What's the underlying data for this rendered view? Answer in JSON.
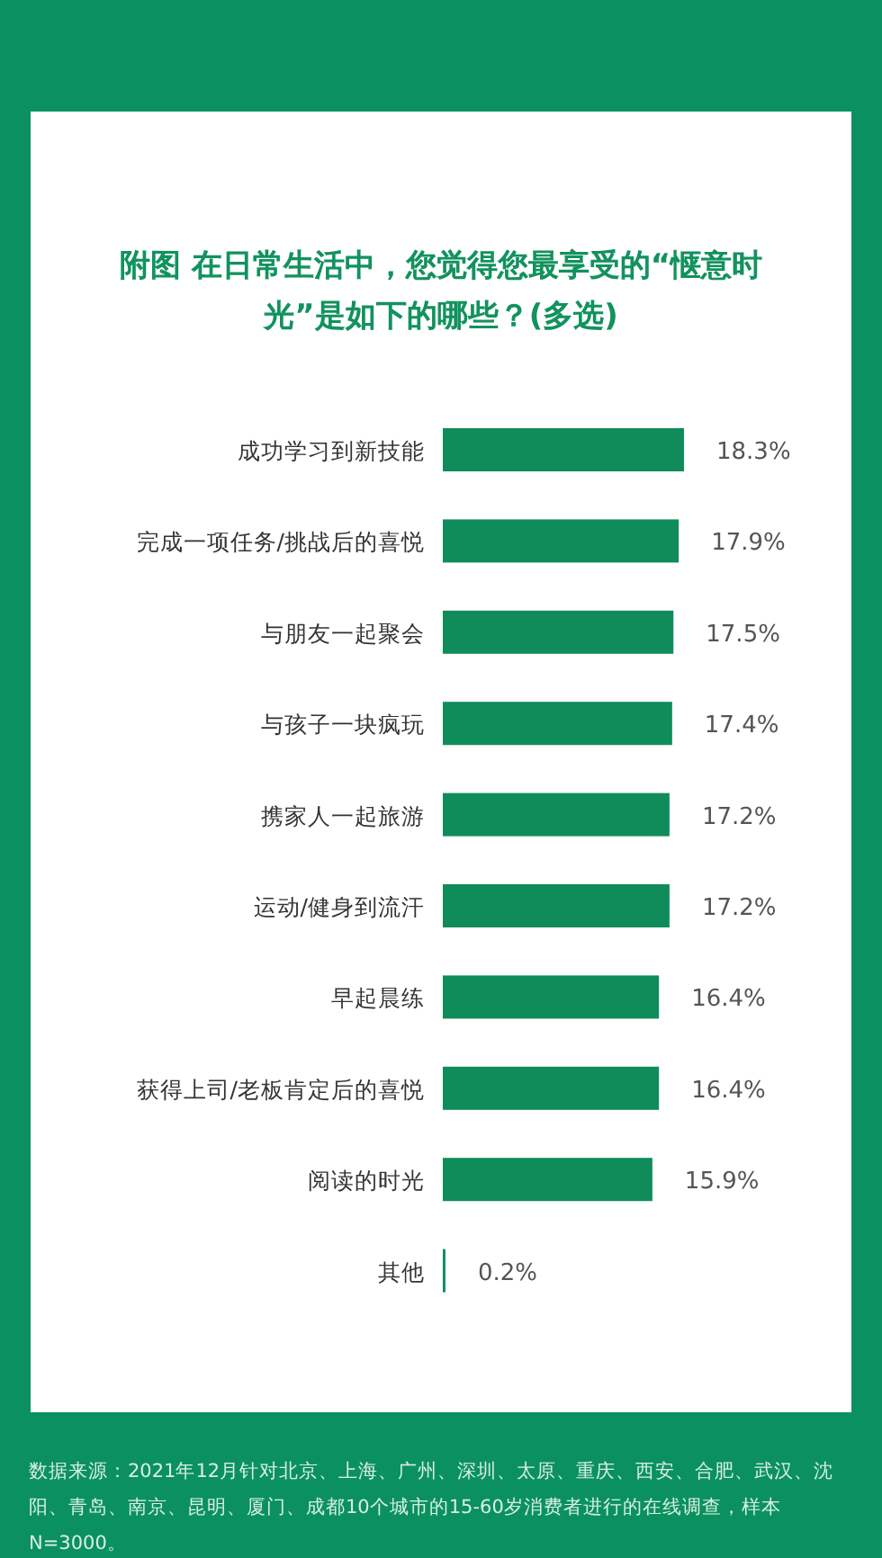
{
  "chart_data": {
    "type": "bar",
    "orientation": "horizontal",
    "title": "附图 在日常生活中，您觉得您最享受的“惬意时光”是如下的哪些？(多选)",
    "categories": [
      "成功学习到新技能",
      "完成一项任务/挑战后的喜悦",
      "与朋友一起聚会",
      "与孩子一块疯玩",
      "携家人一起旅游",
      "运动/健身到流汗",
      "早起晨练",
      "获得上司/老板肯定后的喜悦",
      "阅读的时光",
      "其他"
    ],
    "values": [
      18.3,
      17.9,
      17.5,
      17.4,
      17.2,
      17.2,
      16.4,
      16.4,
      15.9,
      0.2
    ],
    "value_labels": [
      "18.3%",
      "17.9%",
      "17.5%",
      "17.4%",
      "17.2%",
      "17.2%",
      "16.4%",
      "16.4%",
      "15.9%",
      "0.2%"
    ],
    "color": "#0f8c5a",
    "annotations": [
      "数据来源：2021年12月针对北京、上海、广州、深圳、太原、重庆、西安、合肥、武汉、沈阳、青岛、南京、昆明、厦门、成都10个城市的15-60岁消费者进行的在线调查，样本N=3000。"
    ]
  }
}
